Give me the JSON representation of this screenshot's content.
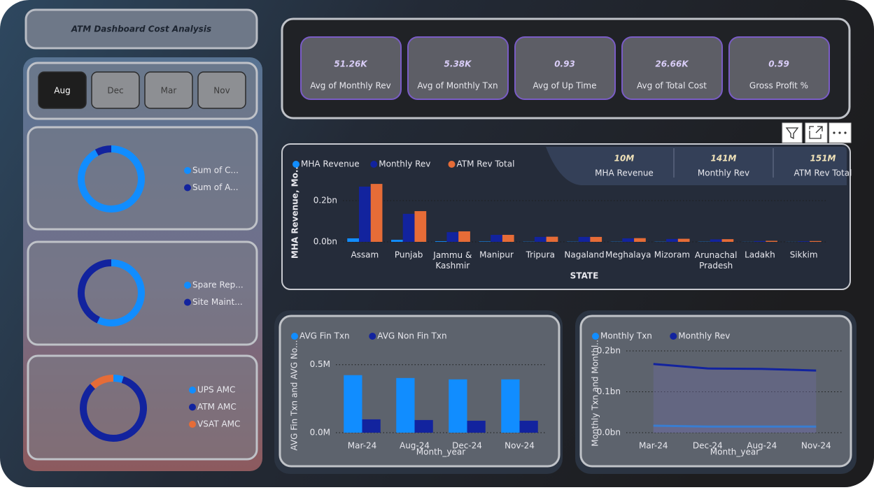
{
  "header": {
    "title": "ATM Dashboard Cost Analysis"
  },
  "slicer": {
    "options": [
      "Aug",
      "Dec",
      "Mar",
      "Nov"
    ],
    "selected": 0
  },
  "kpis": [
    {
      "value": "51.26K",
      "label": "Avg of Monthly Rev"
    },
    {
      "value": "5.38K",
      "label": "Avg of Monthly Txn"
    },
    {
      "value": "0.93",
      "label": "Avg of Up Time"
    },
    {
      "value": "26.66K",
      "label": "Avg of Total Cost"
    },
    {
      "value": "0.59",
      "label": "Gross Profit %"
    }
  ],
  "revenue_cards": [
    {
      "value": "10M",
      "label": "MHA Revenue"
    },
    {
      "value": "141M",
      "label": "Monthly Rev"
    },
    {
      "value": "151M",
      "label": "ATM Rev Total"
    }
  ],
  "chart_data": [
    {
      "type": "donut",
      "categories": [
        "Sum of C...",
        "Sum of A..."
      ],
      "values": [
        92,
        8
      ],
      "colors": [
        "#118dff",
        "#12239e"
      ]
    },
    {
      "type": "donut",
      "categories": [
        "Spare Rep...",
        "Site Maint..."
      ],
      "values": [
        57,
        43
      ],
      "colors": [
        "#118dff",
        "#12239e"
      ]
    },
    {
      "type": "donut",
      "categories": [
        "UPS AMC",
        "ATM AMC",
        "VSAT AMC"
      ],
      "values": [
        5,
        83,
        12
      ],
      "colors": [
        "#118dff",
        "#12239e",
        "#e66c37"
      ]
    },
    {
      "type": "bar",
      "x_label": "STATE",
      "y_label": "MHA Revenue, Mo...",
      "categories": [
        "Assam",
        "Punjab",
        "Jammu & Kashmir",
        "Manipur",
        "Tripura",
        "Nagaland",
        "Meghalaya",
        "Mizoram",
        "Arunachal Pradesh",
        "Ladakh",
        "Sikkim"
      ],
      "series": [
        {
          "name": "MHA Revenue",
          "color": "#118dff",
          "values": [
            0.017,
            0.01,
            0.003,
            0.002,
            0.001,
            0.001,
            0.001,
            0.001,
            0.001,
            0.0005,
            0.0004
          ]
        },
        {
          "name": "Monthly Rev",
          "color": "#12239e",
          "values": [
            0.268,
            0.136,
            0.047,
            0.034,
            0.024,
            0.024,
            0.017,
            0.014,
            0.012,
            0.004,
            0.003
          ]
        },
        {
          "name": "ATM Rev Total",
          "color": "#e66c37",
          "values": [
            0.281,
            0.149,
            0.051,
            0.034,
            0.025,
            0.024,
            0.018,
            0.015,
            0.013,
            0.005,
            0.004
          ]
        }
      ],
      "ylim": [
        0,
        0.3
      ],
      "yticks": [
        {
          "value": 0,
          "label": "0.0bn"
        },
        {
          "value": 0.2,
          "label": "0.2bn"
        }
      ],
      "grid": true
    },
    {
      "type": "bar",
      "x_label": "Month_year",
      "y_label": "AVG Fin Txn and AVG No...",
      "categories": [
        "Mar-24",
        "Aug-24",
        "Dec-24",
        "Nov-24"
      ],
      "series": [
        {
          "name": "AVG Fin Txn",
          "color": "#118dff",
          "values": [
            0.423,
            0.402,
            0.392,
            0.392
          ]
        },
        {
          "name": "AVG Non Fin Txn",
          "color": "#12239e",
          "values": [
            0.098,
            0.093,
            0.088,
            0.088
          ]
        }
      ],
      "ylim": [
        0,
        0.55
      ],
      "yticks": [
        {
          "value": 0,
          "label": "0.0M"
        },
        {
          "value": 0.5,
          "label": "0.5M"
        }
      ],
      "grid": true
    },
    {
      "type": "line",
      "x_label": "Month_year",
      "y_label": "Monthly Txn and Monthl...",
      "area": true,
      "categories": [
        "Mar-24",
        "Dec-24",
        "Aug-24",
        "Nov-24"
      ],
      "series": [
        {
          "name": "Monthly Txn",
          "color": "#118dff",
          "values": [
            0.017,
            0.015,
            0.015,
            0.015
          ]
        },
        {
          "name": "Monthly Rev",
          "color": "#12239e",
          "values": [
            0.168,
            0.157,
            0.156,
            0.152
          ]
        }
      ],
      "ylim": [
        0,
        0.2
      ],
      "yticks": [
        {
          "value": 0,
          "label": "0.0bn"
        },
        {
          "value": 0.1,
          "label": "0.1bn"
        },
        {
          "value": 0.2,
          "label": "0.2bn"
        }
      ],
      "grid": true
    }
  ]
}
